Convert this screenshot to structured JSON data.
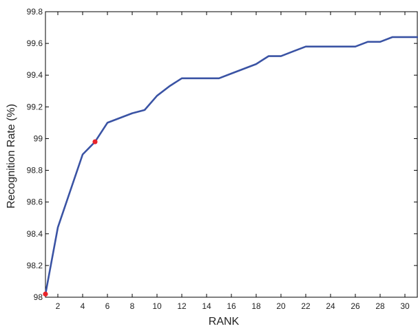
{
  "chart_data": {
    "type": "line",
    "title": "",
    "xlabel": "RANK",
    "ylabel": "Recognition Rate (%)",
    "xlim": [
      1,
      31
    ],
    "ylim": [
      98,
      99.8
    ],
    "xticks": [
      2,
      4,
      6,
      8,
      10,
      12,
      14,
      16,
      18,
      20,
      22,
      24,
      26,
      28,
      30
    ],
    "yticks": [
      98,
      98.2,
      98.4,
      98.6,
      98.8,
      99,
      99.2,
      99.4,
      99.6,
      99.8
    ],
    "xtick_labels": [
      "2",
      "4",
      "6",
      "8",
      "10",
      "12",
      "14",
      "16",
      "18",
      "20",
      "22",
      "24",
      "26",
      "28",
      "30"
    ],
    "ytick_labels": [
      "98",
      "98.2",
      "98.4",
      "98.6",
      "98.8",
      "99",
      "99.2",
      "99.4",
      "99.6",
      "99.8"
    ],
    "grid": false,
    "series": [
      {
        "color": "#3a53a4",
        "x": [
          1,
          2,
          3,
          4,
          5,
          6,
          7,
          8,
          9,
          10,
          11,
          12,
          13,
          14,
          15,
          16,
          17,
          18,
          19,
          20,
          21,
          22,
          23,
          24,
          25,
          26,
          27,
          28,
          29,
          30,
          31
        ],
        "y": [
          98.02,
          98.44,
          98.67,
          98.9,
          98.98,
          99.1,
          99.13,
          99.16,
          99.18,
          99.27,
          99.33,
          99.38,
          99.38,
          99.38,
          99.38,
          99.41,
          99.44,
          99.47,
          99.52,
          99.52,
          99.55,
          99.58,
          99.58,
          99.58,
          99.58,
          99.58,
          99.61,
          99.61,
          99.64,
          99.64,
          99.64
        ]
      }
    ],
    "markers": {
      "color": "#e8232a",
      "points": [
        {
          "x": 1,
          "y": 98.02
        },
        {
          "x": 5,
          "y": 98.98
        }
      ]
    }
  }
}
